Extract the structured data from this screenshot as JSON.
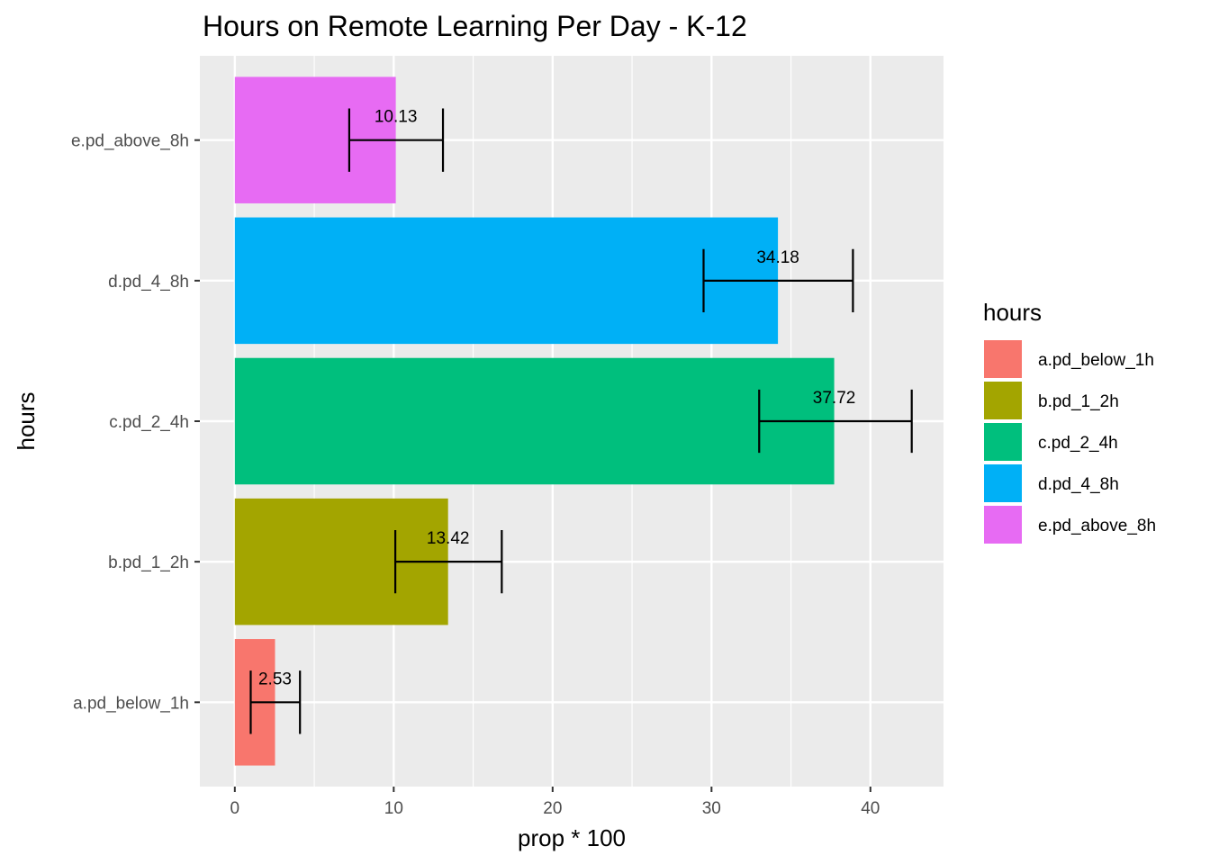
{
  "chart_data": {
    "type": "bar",
    "orientation": "horizontal",
    "title": "Hours on Remote Learning Per Day - K-12",
    "xlabel": "prop * 100",
    "ylabel": "hours",
    "xlim": [
      -2.2,
      44.6
    ],
    "xticks": [
      0,
      10,
      20,
      30,
      40
    ],
    "xtick_labels": [
      "0",
      "10",
      "20",
      "30",
      "40"
    ],
    "grid": true,
    "categories": [
      "a.pd_below_1h",
      "b.pd_1_2h",
      "c.pd_2_4h",
      "d.pd_4_8h",
      "e.pd_above_8h"
    ],
    "values": [
      2.53,
      13.42,
      37.72,
      34.18,
      10.13
    ],
    "value_labels": [
      "2.53",
      "13.42",
      "37.72",
      "34.18",
      "10.13"
    ],
    "error_low": [
      1.0,
      10.1,
      33.0,
      29.5,
      7.2
    ],
    "error_high": [
      4.1,
      16.8,
      42.6,
      38.9,
      13.1
    ],
    "colors": [
      "#F8766D",
      "#A3A500",
      "#00BF7D",
      "#00B0F6",
      "#E76BF3"
    ],
    "legend": {
      "title": "hours",
      "position": "right",
      "entries": [
        "a.pd_below_1h",
        "b.pd_1_2h",
        "c.pd_2_4h",
        "d.pd_4_8h",
        "e.pd_above_8h"
      ]
    }
  }
}
